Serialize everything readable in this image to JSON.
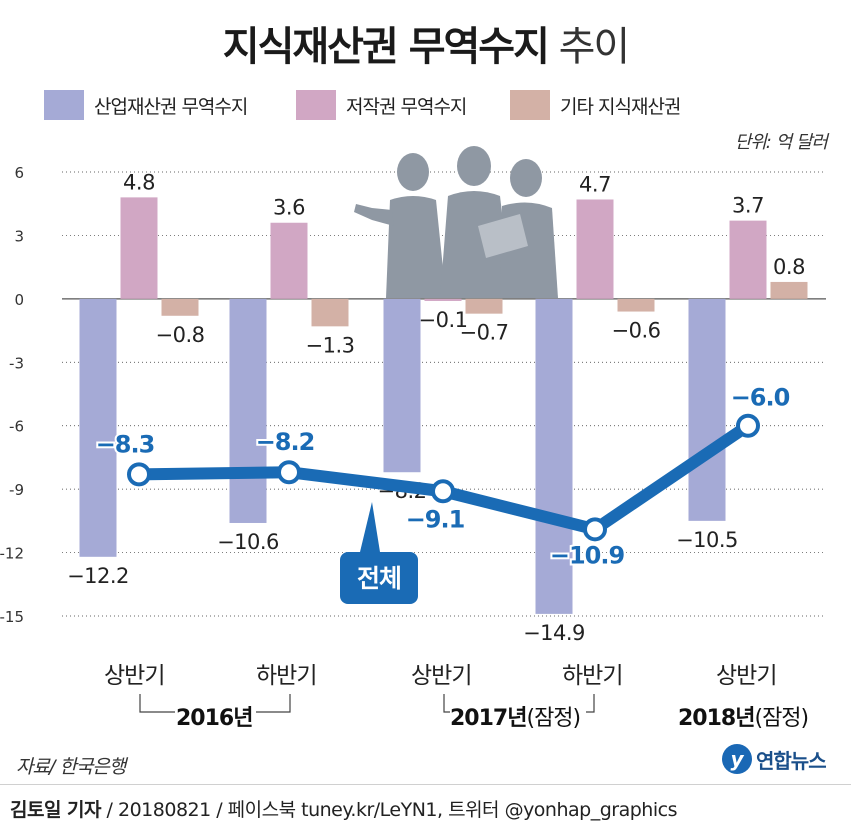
{
  "title": {
    "bold": "지식재산권 무역수지",
    "normal": "추이"
  },
  "legend": [
    {
      "label": "산업재산권 무역수지",
      "color": "#a5aad6"
    },
    {
      "label": "저작권 무역수지",
      "color": "#d1a7c4"
    },
    {
      "label": "기타 지식재산권",
      "color": "#d3b1a6"
    }
  ],
  "unit": "단위: 억 달러",
  "periods": [
    "상반기",
    "하반기",
    "상반기",
    "하반기",
    "상반기"
  ],
  "years": [
    {
      "label": "2016년",
      "provisional": ""
    },
    {
      "label": "2017년",
      "provisional": "(잠정)"
    },
    {
      "label": "2018년",
      "provisional": "(잠정)"
    }
  ],
  "source": "자료/ 한국은행",
  "logo": {
    "mark": "y",
    "text": "연합뉴스"
  },
  "credit": {
    "author": "김토일 기자",
    "rest": " / 20180821 / 페이스북 tuney.kr/LeYN1, 트위터 @yonhap_graphics"
  },
  "chart_data": {
    "type": "bar",
    "title": "지식재산권 무역수지 추이",
    "categories": [
      "2016년 상반기",
      "2016년 하반기",
      "2017년 상반기",
      "2017년 하반기",
      "2018년 상반기"
    ],
    "series": [
      {
        "name": "산업재산권 무역수지",
        "values": [
          -12.2,
          -10.6,
          -8.2,
          -14.9,
          -10.5
        ],
        "labels": [
          "−12.2",
          "−10.6",
          "−8.2",
          "−14.9",
          "−10.5"
        ],
        "color": "#a5aad6"
      },
      {
        "name": "저작권 무역수지",
        "values": [
          4.8,
          3.6,
          -0.1,
          4.7,
          3.7
        ],
        "labels": [
          "4.8",
          "3.6",
          "−0.1",
          "4.7",
          "3.7"
        ],
        "color": "#d1a7c4"
      },
      {
        "name": "기타 지식재산권",
        "values": [
          -0.8,
          -1.3,
          -0.7,
          -0.6,
          0.8
        ],
        "labels": [
          "−0.8",
          "−1.3",
          "−0.7",
          "−0.6",
          "0.8"
        ],
        "color": "#d3b1a6"
      }
    ],
    "total": {
      "name": "전체",
      "type": "line",
      "values": [
        -8.3,
        -8.2,
        -9.1,
        -10.9,
        -6.0
      ],
      "labels": [
        "−8.3",
        "−8.2",
        "−9.1",
        "−10.9",
        "−6.0"
      ],
      "color": "#1a6bb5"
    },
    "yticks": [
      6,
      3,
      0,
      -3,
      -6,
      -9,
      -12,
      -15
    ],
    "ytick_labels": [
      "6",
      "3",
      "0",
      "-3",
      "-6",
      "-9",
      "-12",
      "-15"
    ],
    "ylim": [
      -15,
      6
    ],
    "ylabel": "억 달러",
    "grid": true
  }
}
